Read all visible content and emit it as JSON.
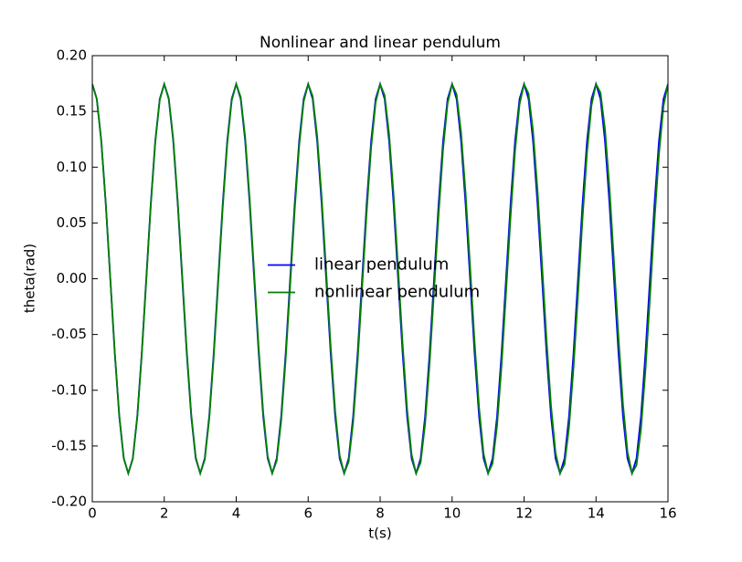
{
  "chart_data": {
    "type": "line",
    "title": "Nonlinear and linear pendulum",
    "x_label": "t(s)",
    "y_label": "theta(rad)",
    "x": [
      0,
      0.125,
      0.25,
      0.375,
      0.5,
      0.625,
      0.75,
      0.875,
      1,
      1.125,
      1.25,
      1.375,
      1.5,
      1.625,
      1.75,
      1.875,
      2,
      2.125,
      2.25,
      2.375,
      2.5,
      2.625,
      2.75,
      2.875,
      3,
      3.125,
      3.25,
      3.375,
      3.5,
      3.625,
      3.75,
      3.875,
      4,
      4.125,
      4.25,
      4.375,
      4.5,
      4.625,
      4.75,
      4.875,
      5,
      5.125,
      5.25,
      5.375,
      5.5,
      5.625,
      5.75,
      5.875,
      6,
      6.125,
      6.25,
      6.375,
      6.5,
      6.625,
      6.75,
      6.875,
      7,
      7.125,
      7.25,
      7.375,
      7.5,
      7.625,
      7.75,
      7.875,
      8,
      8.125,
      8.25,
      8.375,
      8.5,
      8.625,
      8.75,
      8.875,
      9,
      9.125,
      9.25,
      9.375,
      9.5,
      9.625,
      9.75,
      9.875,
      10,
      10.125,
      10.25,
      10.375,
      10.5,
      10.625,
      10.75,
      10.875,
      11,
      11.125,
      11.25,
      11.375,
      11.5,
      11.625,
      11.75,
      11.875,
      12,
      12.125,
      12.25,
      12.375,
      12.5,
      12.625,
      12.75,
      12.875,
      13,
      13.125,
      13.25,
      13.375,
      13.5,
      13.625,
      13.75,
      13.875,
      14,
      14.125,
      14.25,
      14.375,
      14.5,
      14.625,
      14.75,
      14.875,
      15,
      15.125,
      15.25,
      15.375,
      15.5,
      15.625,
      15.75,
      15.875,
      16
    ],
    "series": [
      {
        "name": "linear pendulum",
        "color": "#0000ff",
        "values": [
          0.1745,
          0.1612,
          0.1234,
          0.0668,
          0,
          -0.0668,
          -0.1234,
          -0.1612,
          -0.1745,
          -0.1612,
          -0.1234,
          -0.0668,
          0,
          0.0668,
          0.1234,
          0.1612,
          0.1745,
          0.1612,
          0.1234,
          0.0668,
          0,
          -0.0668,
          -0.1234,
          -0.1612,
          -0.1745,
          -0.1612,
          -0.1234,
          -0.0668,
          0,
          0.0668,
          0.1234,
          0.1612,
          0.1745,
          0.1612,
          0.1234,
          0.0668,
          0,
          -0.0668,
          -0.1234,
          -0.1612,
          -0.1745,
          -0.1612,
          -0.1234,
          -0.0668,
          0,
          0.0668,
          0.1234,
          0.1612,
          0.1745,
          0.1612,
          0.1234,
          0.0668,
          0,
          -0.0668,
          -0.1234,
          -0.1612,
          -0.1745,
          -0.1612,
          -0.1234,
          -0.0668,
          0,
          0.0668,
          0.1234,
          0.1612,
          0.1745,
          0.1612,
          0.1234,
          0.0668,
          0,
          -0.0668,
          -0.1234,
          -0.1612,
          -0.1745,
          -0.1612,
          -0.1234,
          -0.0668,
          0,
          0.0668,
          0.1234,
          0.1612,
          0.1745,
          0.1612,
          0.1234,
          0.0668,
          0,
          -0.0668,
          -0.1234,
          -0.1612,
          -0.1745,
          -0.1612,
          -0.1234,
          -0.0668,
          0,
          0.0668,
          0.1234,
          0.1612,
          0.1745,
          0.1612,
          0.1234,
          0.0668,
          0,
          -0.0668,
          -0.1234,
          -0.1612,
          -0.1745,
          -0.1612,
          -0.1234,
          -0.0668,
          0,
          0.0668,
          0.1234,
          0.1612,
          0.1745,
          0.1612,
          0.1234,
          0.0668,
          0,
          -0.0668,
          -0.1234,
          -0.1612,
          -0.1745,
          -0.1612,
          -0.1234,
          -0.0668,
          0,
          0.0668,
          0.1234,
          0.1612,
          0.1745
        ]
      },
      {
        "name": "nonlinear pendulum",
        "color": "#008000",
        "values": [
          0.1745,
          0.1612,
          0.1236,
          0.0672,
          0.0005,
          -0.0662,
          -0.1228,
          -0.1609,
          -0.1745,
          -0.1617,
          -0.1243,
          -0.0681,
          -0.0016,
          0.0652,
          0.1221,
          0.1605,
          0.1745,
          0.1621,
          0.1251,
          0.0691,
          0.0026,
          -0.0643,
          -0.1214,
          -0.1601,
          -0.1745,
          -0.1624,
          -0.1258,
          -0.07,
          -0.0036,
          0.0633,
          0.1206,
          0.1597,
          0.1745,
          0.1628,
          0.1265,
          0.071,
          0.0047,
          -0.0624,
          -0.1199,
          -0.1593,
          -0.1745,
          -0.1632,
          -0.1273,
          -0.072,
          -0.0057,
          0.0614,
          0.1192,
          0.1589,
          0.1745,
          0.1636,
          0.128,
          0.0729,
          0.0068,
          -0.0604,
          -0.1184,
          -0.1585,
          -0.1745,
          -0.164,
          -0.1287,
          -0.0739,
          -0.0078,
          0.0595,
          0.1177,
          0.1581,
          0.1745,
          0.1644,
          0.1295,
          0.0749,
          0.0088,
          -0.0585,
          -0.117,
          -0.1577,
          -0.1745,
          -0.1648,
          -0.1302,
          -0.0758,
          -0.0099,
          0.0576,
          0.1162,
          0.1573,
          0.1745,
          0.1652,
          0.1309,
          0.0768,
          0.0109,
          -0.0566,
          -0.1155,
          -0.1569,
          -0.1745,
          -0.1656,
          -0.1317,
          -0.0777,
          -0.012,
          0.0556,
          0.1148,
          0.1565,
          0.1745,
          0.166,
          0.1324,
          0.0787,
          0.013,
          -0.0547,
          -0.114,
          -0.1561,
          -0.1745,
          -0.1664,
          -0.1331,
          -0.0796,
          -0.014,
          0.0537,
          0.1133,
          0.1557,
          0.1745,
          0.1668,
          0.1339,
          0.0806,
          0.0151,
          -0.0528,
          -0.1126,
          -0.1553,
          -0.1745,
          -0.1672,
          -0.1346,
          -0.0816,
          -0.0161,
          0.0518,
          0.1118,
          0.1549,
          0.1745
        ]
      }
    ],
    "xlim": [
      0,
      16
    ],
    "xticks": [
      0,
      2,
      4,
      6,
      8,
      10,
      12,
      14,
      16
    ],
    "ylim": [
      -0.2,
      0.2
    ],
    "yticks": [
      {
        "value": -0.2,
        "label": "-0.20"
      },
      {
        "value": -0.15,
        "label": "-0.15"
      },
      {
        "value": -0.1,
        "label": "-0.10"
      },
      {
        "value": -0.05,
        "label": "-0.05"
      },
      {
        "value": 0,
        "label": "0.00"
      },
      {
        "value": 0.05,
        "label": "0.05"
      },
      {
        "value": 0.1,
        "label": "0.10"
      },
      {
        "value": 0.15,
        "label": "0.15"
      },
      {
        "value": 0.2,
        "label": "0.20"
      }
    ],
    "grid": false,
    "legend_loc": "center"
  }
}
